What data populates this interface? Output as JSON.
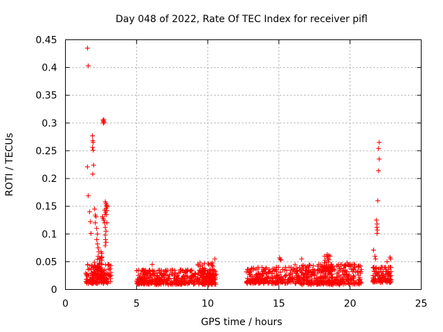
{
  "chart_data": {
    "type": "scatter",
    "title": "Day 048 of 2022, Rate Of TEC Index for receiver pifl",
    "xlabel": "GPS time / hours",
    "ylabel": "ROTI / TECUs",
    "xlim": [
      0,
      25
    ],
    "ylim": [
      0,
      0.45
    ],
    "xticks": [
      0,
      5,
      10,
      15,
      20,
      25
    ],
    "yticks": [
      0,
      0.05,
      0.1,
      0.15,
      0.2,
      0.25,
      0.3,
      0.35,
      0.4,
      0.45
    ],
    "xtick_labels": [
      "0",
      "5",
      "10",
      "15",
      "20",
      "25"
    ],
    "ytick_labels": [
      "0",
      "0.05",
      "0.1",
      "0.15",
      "0.2",
      "0.25",
      "0.3",
      "0.35",
      "0.4",
      "0.45"
    ],
    "grid": true,
    "marker": "+",
    "color": "#ff0000",
    "series": [
      {
        "name": "ROTI",
        "points": [
          [
            1.55,
            0.435
          ],
          [
            1.6,
            0.403
          ],
          [
            1.55,
            0.221
          ],
          [
            1.6,
            0.169
          ],
          [
            1.7,
            0.14
          ],
          [
            1.75,
            0.122
          ],
          [
            1.8,
            0.101
          ],
          [
            1.9,
            0.277
          ],
          [
            1.92,
            0.268
          ],
          [
            1.95,
            0.265
          ],
          [
            1.9,
            0.256
          ],
          [
            1.95,
            0.251
          ],
          [
            1.98,
            0.224
          ],
          [
            1.92,
            0.208
          ],
          [
            2.05,
            0.145
          ],
          [
            2.1,
            0.134
          ],
          [
            2.15,
            0.131
          ],
          [
            2.1,
            0.12
          ],
          [
            2.2,
            0.11
          ],
          [
            2.25,
            0.1
          ],
          [
            2.2,
            0.09
          ],
          [
            2.25,
            0.082
          ],
          [
            2.3,
            0.075
          ],
          [
            2.35,
            0.068
          ],
          [
            2.3,
            0.06
          ],
          [
            2.4,
            0.055
          ],
          [
            2.5,
            0.068
          ],
          [
            2.55,
            0.065
          ],
          [
            2.65,
            0.305
          ],
          [
            2.68,
            0.303
          ],
          [
            2.7,
            0.306
          ],
          [
            2.72,
            0.301
          ],
          [
            2.66,
            0.3
          ],
          [
            2.6,
            0.131
          ],
          [
            2.65,
            0.128
          ],
          [
            2.7,
            0.125
          ],
          [
            2.75,
            0.12
          ],
          [
            2.78,
            0.135
          ],
          [
            2.8,
            0.158
          ],
          [
            2.85,
            0.155
          ],
          [
            2.9,
            0.152
          ],
          [
            2.95,
            0.149
          ],
          [
            2.85,
            0.146
          ],
          [
            2.9,
            0.142
          ],
          [
            2.82,
            0.139
          ],
          [
            2.88,
            0.135
          ],
          [
            2.92,
            0.12
          ],
          [
            2.8,
            0.112
          ],
          [
            2.85,
            0.105
          ],
          [
            2.8,
            0.098
          ],
          [
            2.82,
            0.09
          ],
          [
            2.85,
            0.085
          ],
          [
            2.8,
            0.079
          ],
          [
            2.9,
            0.15
          ],
          [
            2.75,
            0.143
          ],
          [
            6.1,
            0.045
          ],
          [
            10.5,
            0.055
          ],
          [
            15.05,
            0.057
          ],
          [
            15.1,
            0.054
          ],
          [
            15.15,
            0.053
          ],
          [
            16.6,
            0.055
          ],
          [
            18.4,
            0.063
          ],
          [
            18.5,
            0.061
          ],
          [
            18.6,
            0.06
          ],
          [
            19.8,
            0.048
          ],
          [
            21.65,
            0.071
          ],
          [
            21.75,
            0.06
          ],
          [
            21.8,
            0.055
          ],
          [
            21.85,
            0.125
          ],
          [
            21.9,
            0.118
          ],
          [
            21.88,
            0.112
          ],
          [
            21.92,
            0.107
          ],
          [
            21.9,
            0.101
          ],
          [
            21.95,
            0.16
          ],
          [
            22.0,
            0.214
          ],
          [
            22.05,
            0.235
          ],
          [
            22.0,
            0.254
          ],
          [
            22.05,
            0.265
          ],
          [
            22.6,
            0.05
          ],
          [
            22.8,
            0.058
          ],
          [
            22.85,
            0.055
          ]
        ],
        "clusters": [
          {
            "x_range": [
              1.4,
              3.2
            ],
            "y_range": [
              0.01,
              0.045
            ],
            "count": 150
          },
          {
            "x_range": [
              2.0,
              2.6
            ],
            "y_range": [
              0.02,
              0.06
            ],
            "count": 50
          },
          {
            "x_range": [
              5.0,
              10.6
            ],
            "y_range": [
              0.008,
              0.035
            ],
            "count": 420
          },
          {
            "x_range": [
              9.3,
              10.4
            ],
            "y_range": [
              0.02,
              0.048
            ],
            "count": 60
          },
          {
            "x_range": [
              12.7,
              16.0
            ],
            "y_range": [
              0.01,
              0.04
            ],
            "count": 230
          },
          {
            "x_range": [
              16.0,
              20.8
            ],
            "y_range": [
              0.008,
              0.045
            ],
            "count": 380
          },
          {
            "x_range": [
              18.2,
              18.7
            ],
            "y_range": [
              0.03,
              0.06
            ],
            "count": 30
          },
          {
            "x_range": [
              21.6,
              22.9
            ],
            "y_range": [
              0.012,
              0.04
            ],
            "count": 110
          }
        ]
      }
    ]
  }
}
